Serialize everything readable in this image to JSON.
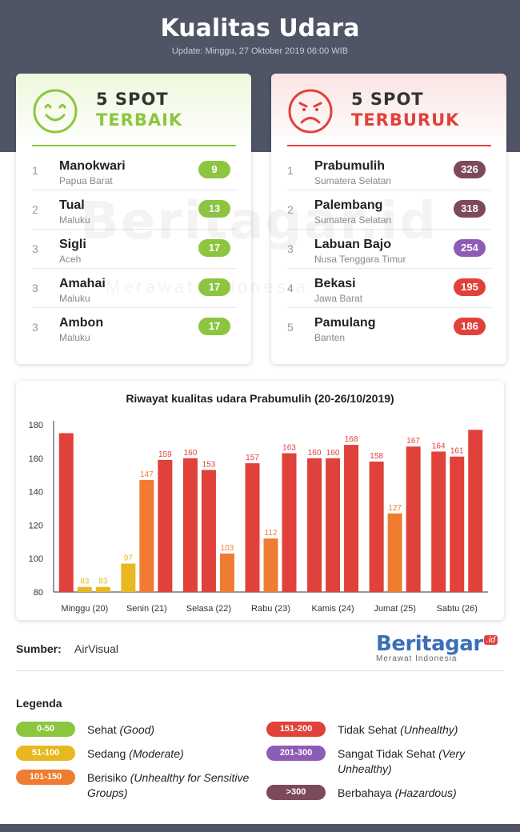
{
  "header": {
    "title": "Kualitas Udara",
    "update": "Update: Minggu, 27 Oktober 2019 06:00 WIB"
  },
  "best": {
    "line1": "5 SPOT",
    "line2": "TERBAIK",
    "rows": [
      {
        "rank": "1",
        "city": "Manokwari",
        "province": "Papua Barat",
        "aqi": "9",
        "color": "#8cc63f"
      },
      {
        "rank": "2",
        "city": "Tual",
        "province": "Maluku",
        "aqi": "13",
        "color": "#8cc63f"
      },
      {
        "rank": "3",
        "city": "Sigli",
        "province": "Aceh",
        "aqi": "17",
        "color": "#8cc63f"
      },
      {
        "rank": "3",
        "city": "Amahai",
        "province": "Maluku",
        "aqi": "17",
        "color": "#8cc63f"
      },
      {
        "rank": "3",
        "city": "Ambon",
        "province": "Maluku",
        "aqi": "17",
        "color": "#8cc63f"
      }
    ]
  },
  "worst": {
    "line1": "5 SPOT",
    "line2": "TERBURUK",
    "rows": [
      {
        "rank": "1",
        "city": "Prabumulih",
        "province": "Sumatera Selatan",
        "aqi": "326",
        "color": "#7d4a5a"
      },
      {
        "rank": "2",
        "city": "Palembang",
        "province": "Sumatera Selatan",
        "aqi": "318",
        "color": "#7d4a5a"
      },
      {
        "rank": "3",
        "city": "Labuan Bajo",
        "province": "Nusa Tenggara Timur",
        "aqi": "254",
        "color": "#8e5bb5"
      },
      {
        "rank": "4",
        "city": "Bekasi",
        "province": "Jawa Barat",
        "aqi": "195",
        "color": "#e0413b"
      },
      {
        "rank": "5",
        "city": "Pamulang",
        "province": "Banten",
        "aqi": "186",
        "color": "#e0413b"
      }
    ]
  },
  "watermark": {
    "main": "Beritagar.id",
    "tag": "Merawat Indonesia"
  },
  "chart_data": {
    "type": "bar",
    "title": "Riwayat kualitas udara Prabumulih (20-26/10/2019)",
    "categories": [
      "Minggu (20)",
      "Senin (21)",
      "Selasa (22)",
      "Rabu (23)",
      "Kamis (24)",
      "Jumat (25)",
      "Sabtu (26)"
    ],
    "bars_per_category": 3,
    "values": [
      [
        175,
        83,
        83
      ],
      [
        97,
        147,
        159
      ],
      [
        160,
        153,
        103
      ],
      [
        157,
        112,
        163
      ],
      [
        160,
        160,
        168
      ],
      [
        158,
        127,
        167
      ],
      [
        164,
        161,
        177
      ]
    ],
    "labels": [
      [
        "",
        "83",
        "83"
      ],
      [
        "97",
        "147",
        "159"
      ],
      [
        "160",
        "153",
        "103"
      ],
      [
        "157",
        "112",
        "163"
      ],
      [
        "160",
        "160",
        "168"
      ],
      [
        "158",
        "127",
        "167"
      ],
      [
        "164",
        "161",
        ""
      ]
    ],
    "ylim": [
      80,
      180
    ],
    "yticks": [
      80,
      100,
      120,
      140,
      160,
      180
    ],
    "grid": false,
    "color_scale": [
      {
        "max": 50,
        "color": "#8cc63f"
      },
      {
        "max": 100,
        "color": "#e8b820"
      },
      {
        "max": 150,
        "color": "#ef7c30"
      },
      {
        "max": 200,
        "color": "#e0413b"
      },
      {
        "max": 300,
        "color": "#8e5bb5"
      },
      {
        "max": 100000,
        "color": "#7d4a5a"
      }
    ]
  },
  "source": {
    "label": "Sumber:",
    "value": "AirVisual"
  },
  "logo": {
    "main": "Beritagar",
    "id": ".id",
    "tag": "Merawat Indonesia"
  },
  "legend": {
    "title": "Legenda",
    "items": [
      {
        "range": "0-50",
        "label": "Sehat",
        "label_en": "(Good)",
        "color": "#8cc63f"
      },
      {
        "range": "51-100",
        "label": "Sedang",
        "label_en": "(Moderate)",
        "color": "#e8b820"
      },
      {
        "range": "101-150",
        "label": "Berisiko",
        "label_en": "(Unhealthy for Sensitive Groups)",
        "color": "#ef7c30"
      },
      {
        "range": "151-200",
        "label": "Tidak Sehat",
        "label_en": "(Unhealthy)",
        "color": "#e0413b"
      },
      {
        "range": "201-300",
        "label": "Sangat Tidak Sehat",
        "label_en": "(Very Unhealthy)",
        "color": "#8e5bb5"
      },
      {
        "range": ">300",
        "label": "Berbahaya",
        "label_en": "(Hazardous)",
        "color": "#7d4a5a"
      }
    ]
  }
}
